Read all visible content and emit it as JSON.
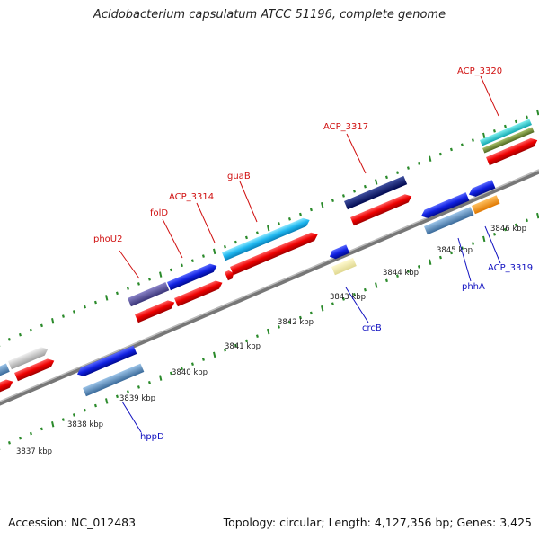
{
  "title": "Acidobacterium capsulatum ATCC 51196, complete genome",
  "footer": {
    "accession": "Accession: NC_012483",
    "topology": "Topology: circular; Length: 4,127,356 bp; Genes: 3,425"
  },
  "scale_labels": [
    "3837 kbp",
    "3838 kbp",
    "3839 kbp",
    "3840 kbp",
    "3841 kbp",
    "3842 kbp",
    "3843 kbp",
    "3844 kbp",
    "3845 kbp",
    "3846 kbp"
  ],
  "gene_labels": {
    "forward": [
      "phoU2",
      "folD",
      "ACP_3314",
      "guaB",
      "ACP_3317",
      "ACP_3320"
    ],
    "reverse": [
      "hppD",
      "crcB",
      "phhA",
      "ACP_3319"
    ]
  },
  "colors": {
    "forward_label": "#d01010",
    "reverse_label": "#1010c0",
    "backbone": "#888888",
    "tick": "#2a8a2a"
  }
}
